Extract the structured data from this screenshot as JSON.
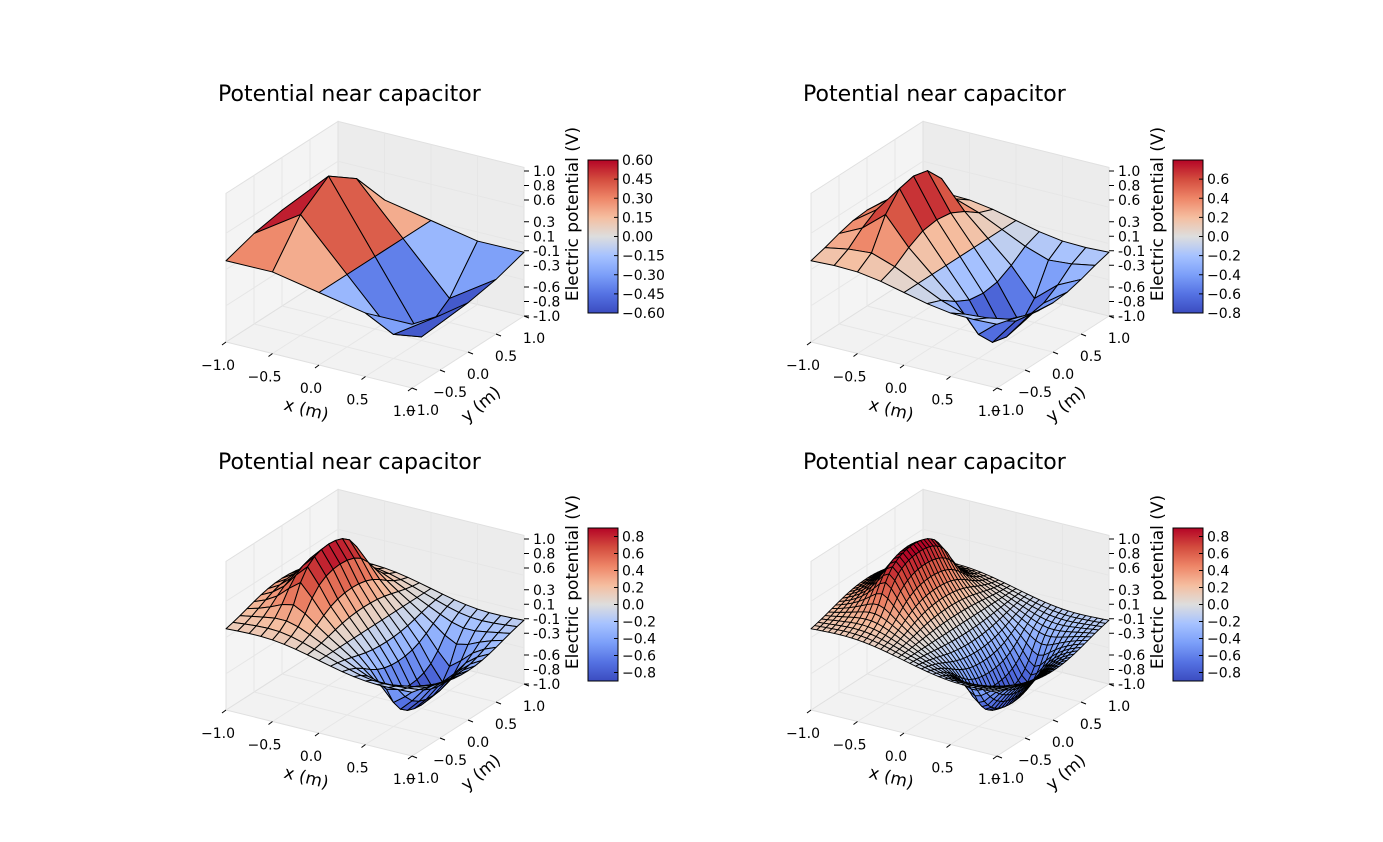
{
  "figure": {
    "chart_data": [
      {
        "type": "surface",
        "title": "Potential near capacitor",
        "xlabel": "x (m)",
        "ylabel": "y (m)",
        "zlabel": "Electric potential (V)",
        "x_ticks": [
          "−1.0",
          "−0.5",
          "0.0",
          "0.5",
          "1.0"
        ],
        "y_ticks": [
          "−1.0",
          "−0.5",
          "0.0",
          "0.5",
          "1.0"
        ],
        "z_ticks": [
          "-1.0",
          "-0.8",
          "-0.6",
          "-0.3",
          "-0.1",
          "0.1",
          "0.3",
          "0.6",
          "0.8",
          "1.0"
        ],
        "colorbar": {
          "label": "Electric potential (V)",
          "range": [
            -0.6,
            0.6
          ],
          "ticks": [
            "0.60",
            "0.45",
            "0.30",
            "0.15",
            "0.00",
            "−0.15",
            "−0.30",
            "−0.45",
            "−0.60"
          ]
        },
        "grid_n": 5,
        "z_range": [
          -1.0,
          1.0
        ],
        "colormap": "coolwarm"
      },
      {
        "type": "surface",
        "title": "Potential near capacitor",
        "xlabel": "x (m)",
        "ylabel": "y (m)",
        "zlabel": "Electric potential (V)",
        "x_ticks": [
          "−1.0",
          "−0.5",
          "0.0",
          "0.5",
          "1.0"
        ],
        "y_ticks": [
          "−1.0",
          "−0.5",
          "0.0",
          "0.5",
          "1.0"
        ],
        "z_ticks": [
          "-1.0",
          "-0.8",
          "-0.6",
          "-0.3",
          "-0.1",
          "0.1",
          "0.3",
          "0.6",
          "0.8",
          "1.0"
        ],
        "colorbar": {
          "label": "Electric potential (V)",
          "range": [
            -0.8,
            0.8
          ],
          "ticks": [
            "0.6",
            "0.4",
            "0.2",
            "0.0",
            "−0.2",
            "−0.4",
            "−0.6",
            "−0.8"
          ]
        },
        "grid_n": 9,
        "z_range": [
          -1.0,
          1.0
        ],
        "colormap": "coolwarm"
      },
      {
        "type": "surface",
        "title": "Potential near capacitor",
        "xlabel": "x (m)",
        "ylabel": "y (m)",
        "zlabel": "Electric potential (V)",
        "x_ticks": [
          "−1.0",
          "−0.5",
          "0.0",
          "0.5",
          "1.0"
        ],
        "y_ticks": [
          "−1.0",
          "−0.5",
          "0.0",
          "0.5",
          "1.0"
        ],
        "z_ticks": [
          "-1.0",
          "-0.8",
          "-0.6",
          "-0.3",
          "-0.1",
          "0.1",
          "0.3",
          "0.6",
          "0.8",
          "1.0"
        ],
        "colorbar": {
          "label": "Electric potential (V)",
          "range": [
            -0.9,
            0.9
          ],
          "ticks": [
            "0.8",
            "0.6",
            "0.4",
            "0.2",
            "0.0",
            "−0.2",
            "−0.4",
            "−0.6",
            "−0.8"
          ]
        },
        "grid_n": 17,
        "z_range": [
          -1.0,
          1.0
        ],
        "colormap": "coolwarm"
      },
      {
        "type": "surface",
        "title": "Potential near capacitor",
        "xlabel": "x (m)",
        "ylabel": "y (m)",
        "zlabel": "Electric potential (V)",
        "x_ticks": [
          "−1.0",
          "−0.5",
          "0.0",
          "0.5",
          "1.0"
        ],
        "y_ticks": [
          "−1.0",
          "−0.5",
          "0.0",
          "0.5",
          "1.0"
        ],
        "z_ticks": [
          "-1.0",
          "-0.8",
          "-0.6",
          "-0.3",
          "-0.1",
          "0.1",
          "0.3",
          "0.6",
          "0.8",
          "1.0"
        ],
        "colorbar": {
          "label": "Electric potential (V)",
          "range": [
            -0.9,
            0.9
          ],
          "ticks": [
            "0.8",
            "0.6",
            "0.4",
            "0.2",
            "0.0",
            "−0.2",
            "−0.4",
            "−0.6",
            "−0.8"
          ]
        },
        "grid_n": 33,
        "z_range": [
          -1.0,
          1.0
        ],
        "colormap": "coolwarm"
      }
    ],
    "colors": {
      "background": "#ffffff",
      "pane": "#f2f2f2",
      "pane_grid": "#e6e6e6",
      "mesh_edge": "#000000",
      "cmap_low": "#3b4cc0",
      "cmap_mid": "#dddddd",
      "cmap_high": "#b40426"
    }
  }
}
